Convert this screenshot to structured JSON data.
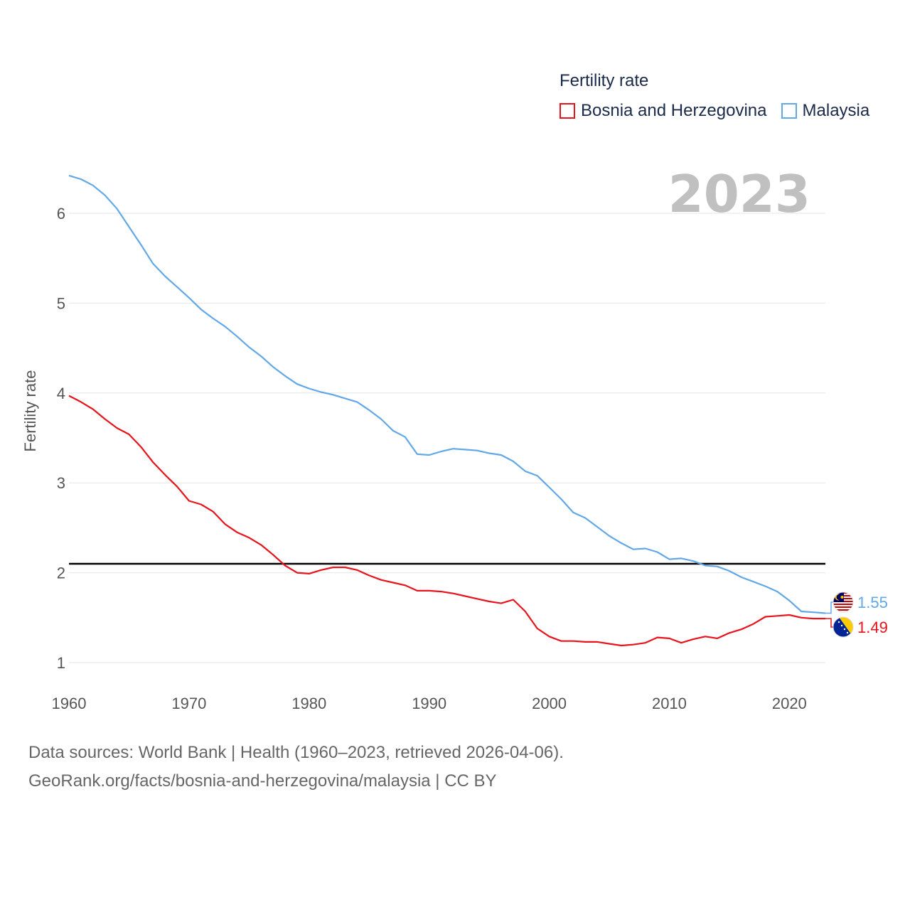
{
  "legend": {
    "title": "Fertility rate",
    "items": [
      {
        "label": "Bosnia and Herzegovina",
        "color": "#e8141b"
      },
      {
        "label": "Malaysia",
        "color": "#62a8e8"
      }
    ]
  },
  "year_label": "2023",
  "footer": {
    "line1": "Data sources: World Bank | Health (1960–2023, retrieved 2026-04-06).",
    "line2": "GeoRank.org/facts/bosnia-and-herzegovina/malaysia | CC BY"
  },
  "chart_data": {
    "type": "line",
    "title": "Fertility rate",
    "xlabel": "",
    "ylabel": "Fertility rate",
    "xlim": [
      1960,
      2023
    ],
    "ylim": [
      0.8,
      6.5
    ],
    "xticks": [
      1960,
      1970,
      1980,
      1990,
      2000,
      2010,
      2020
    ],
    "yticks": [
      1,
      2,
      3,
      4,
      5,
      6
    ],
    "reference_line": 2.1,
    "x": [
      1960,
      1961,
      1962,
      1963,
      1964,
      1965,
      1966,
      1967,
      1968,
      1969,
      1970,
      1971,
      1972,
      1973,
      1974,
      1975,
      1976,
      1977,
      1978,
      1979,
      1980,
      1981,
      1982,
      1983,
      1984,
      1985,
      1986,
      1987,
      1988,
      1989,
      1990,
      1991,
      1992,
      1993,
      1994,
      1995,
      1996,
      1997,
      1998,
      1999,
      2000,
      2001,
      2002,
      2003,
      2004,
      2005,
      2006,
      2007,
      2008,
      2009,
      2010,
      2011,
      2012,
      2013,
      2014,
      2015,
      2016,
      2017,
      2018,
      2019,
      2020,
      2021,
      2022,
      2023
    ],
    "series": [
      {
        "name": "Malaysia",
        "color": "#62a8e8",
        "end_label": "1.55",
        "values": [
          6.42,
          6.38,
          6.31,
          6.2,
          6.05,
          5.85,
          5.65,
          5.44,
          5.3,
          5.18,
          5.06,
          4.93,
          4.83,
          4.74,
          4.63,
          4.51,
          4.41,
          4.29,
          4.19,
          4.1,
          4.05,
          4.01,
          3.98,
          3.94,
          3.9,
          3.81,
          3.71,
          3.58,
          3.51,
          3.32,
          3.31,
          3.35,
          3.38,
          3.37,
          3.36,
          3.33,
          3.31,
          3.24,
          3.13,
          3.08,
          2.95,
          2.82,
          2.67,
          2.61,
          2.51,
          2.41,
          2.33,
          2.26,
          2.27,
          2.23,
          2.15,
          2.16,
          2.13,
          2.08,
          2.07,
          2.02,
          1.95,
          1.9,
          1.85,
          1.79,
          1.69,
          1.57,
          1.56,
          1.55
        ]
      },
      {
        "name": "Bosnia and Herzegovina",
        "color": "#e8141b",
        "end_label": "1.49",
        "values": [
          3.97,
          3.9,
          3.82,
          3.71,
          3.61,
          3.54,
          3.4,
          3.23,
          3.09,
          2.96,
          2.8,
          2.76,
          2.68,
          2.54,
          2.45,
          2.39,
          2.31,
          2.2,
          2.08,
          2.0,
          1.99,
          2.03,
          2.06,
          2.06,
          2.03,
          1.97,
          1.92,
          1.89,
          1.86,
          1.8,
          1.8,
          1.79,
          1.77,
          1.74,
          1.71,
          1.68,
          1.66,
          1.7,
          1.57,
          1.38,
          1.29,
          1.24,
          1.24,
          1.23,
          1.23,
          1.21,
          1.19,
          1.2,
          1.22,
          1.28,
          1.27,
          1.22,
          1.26,
          1.29,
          1.27,
          1.33,
          1.37,
          1.43,
          1.51,
          1.52,
          1.53,
          1.5,
          1.49,
          1.49
        ]
      }
    ]
  }
}
